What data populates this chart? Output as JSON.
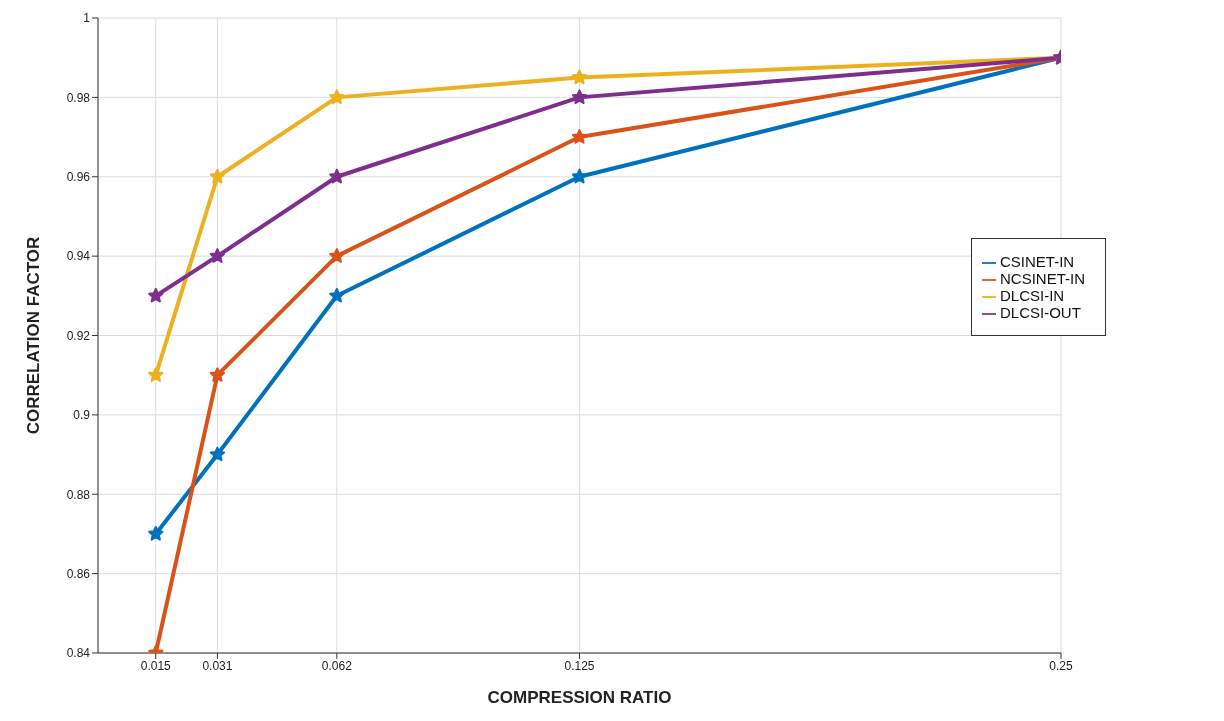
{
  "chart_data": {
    "type": "line",
    "xlabel": "COMPRESSION RATIO",
    "ylabel": "CORRELATION FACTOR",
    "x": [
      0.015,
      0.031,
      0.062,
      0.125,
      0.25
    ],
    "series": [
      {
        "name": "CSINET-IN",
        "color": "#0072bd",
        "values": [
          0.87,
          0.89,
          0.93,
          0.96,
          0.99
        ]
      },
      {
        "name": "NCSINET-IN",
        "color": "#d95319",
        "values": [
          0.84,
          0.91,
          0.94,
          0.97,
          0.99
        ]
      },
      {
        "name": "DLCSI-IN",
        "color": "#edb120",
        "values": [
          0.91,
          0.96,
          0.98,
          0.985,
          0.99
        ]
      },
      {
        "name": "DLCSI-OUT",
        "color": "#7e2f8e",
        "values": [
          0.93,
          0.94,
          0.96,
          0.98,
          0.99
        ]
      }
    ],
    "xlim": [
      0,
      0.25
    ],
    "xticks": [
      0.015,
      0.031,
      0.062,
      0.125,
      0.25
    ],
    "ylim": [
      0.84,
      1
    ],
    "yticks": [
      0.84,
      0.86,
      0.88,
      0.9,
      0.92,
      0.94,
      0.96,
      0.98,
      1
    ],
    "grid": true,
    "legend": "right",
    "marker": "star",
    "line_style": "solid"
  }
}
